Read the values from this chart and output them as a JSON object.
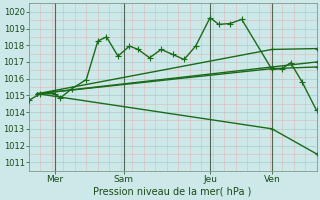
{
  "background_color": "#cce8e8",
  "grid_color_major": "#aacccc",
  "grid_color_minor": "#e0b8b8",
  "line_color": "#1a6b1a",
  "xlabel": "Pression niveau de la mer( hPa )",
  "ylim": [
    1010.5,
    1020.5
  ],
  "yticks": [
    1011,
    1012,
    1013,
    1014,
    1015,
    1016,
    1017,
    1018,
    1019,
    1020
  ],
  "xlim": [
    0,
    1.0
  ],
  "day_positions": [
    0.09,
    0.33,
    0.63,
    0.845
  ],
  "day_labels": [
    "Mer",
    "Sam",
    "Jeu",
    "Ven"
  ],
  "series1_x": [
    0.0,
    0.04,
    0.09,
    0.11,
    0.15,
    0.2,
    0.24,
    0.27,
    0.31,
    0.35,
    0.38,
    0.42,
    0.46,
    0.5,
    0.54,
    0.58,
    0.63,
    0.66,
    0.7,
    0.74,
    0.845,
    0.88,
    0.91,
    0.95,
    1.0
  ],
  "series1_y": [
    1014.7,
    1015.1,
    1015.1,
    1014.85,
    1015.4,
    1015.95,
    1018.25,
    1018.5,
    1017.35,
    1017.95,
    1017.75,
    1017.25,
    1017.75,
    1017.45,
    1017.15,
    1017.95,
    1019.65,
    1019.25,
    1019.3,
    1019.55,
    1016.55,
    1016.6,
    1016.95,
    1015.8,
    1014.1
  ],
  "series2_x": [
    0.03,
    0.845,
    1.0
  ],
  "series2_y": [
    1015.1,
    1017.75,
    1017.8
  ],
  "series3_x": [
    0.03,
    0.845,
    1.0
  ],
  "series3_y": [
    1015.1,
    1016.6,
    1016.7
  ],
  "series4_x": [
    0.03,
    0.845,
    1.0
  ],
  "series4_y": [
    1015.1,
    1016.7,
    1017.0
  ],
  "series5_x": [
    0.03,
    0.845,
    1.0
  ],
  "series5_y": [
    1015.1,
    1013.0,
    1011.5
  ]
}
